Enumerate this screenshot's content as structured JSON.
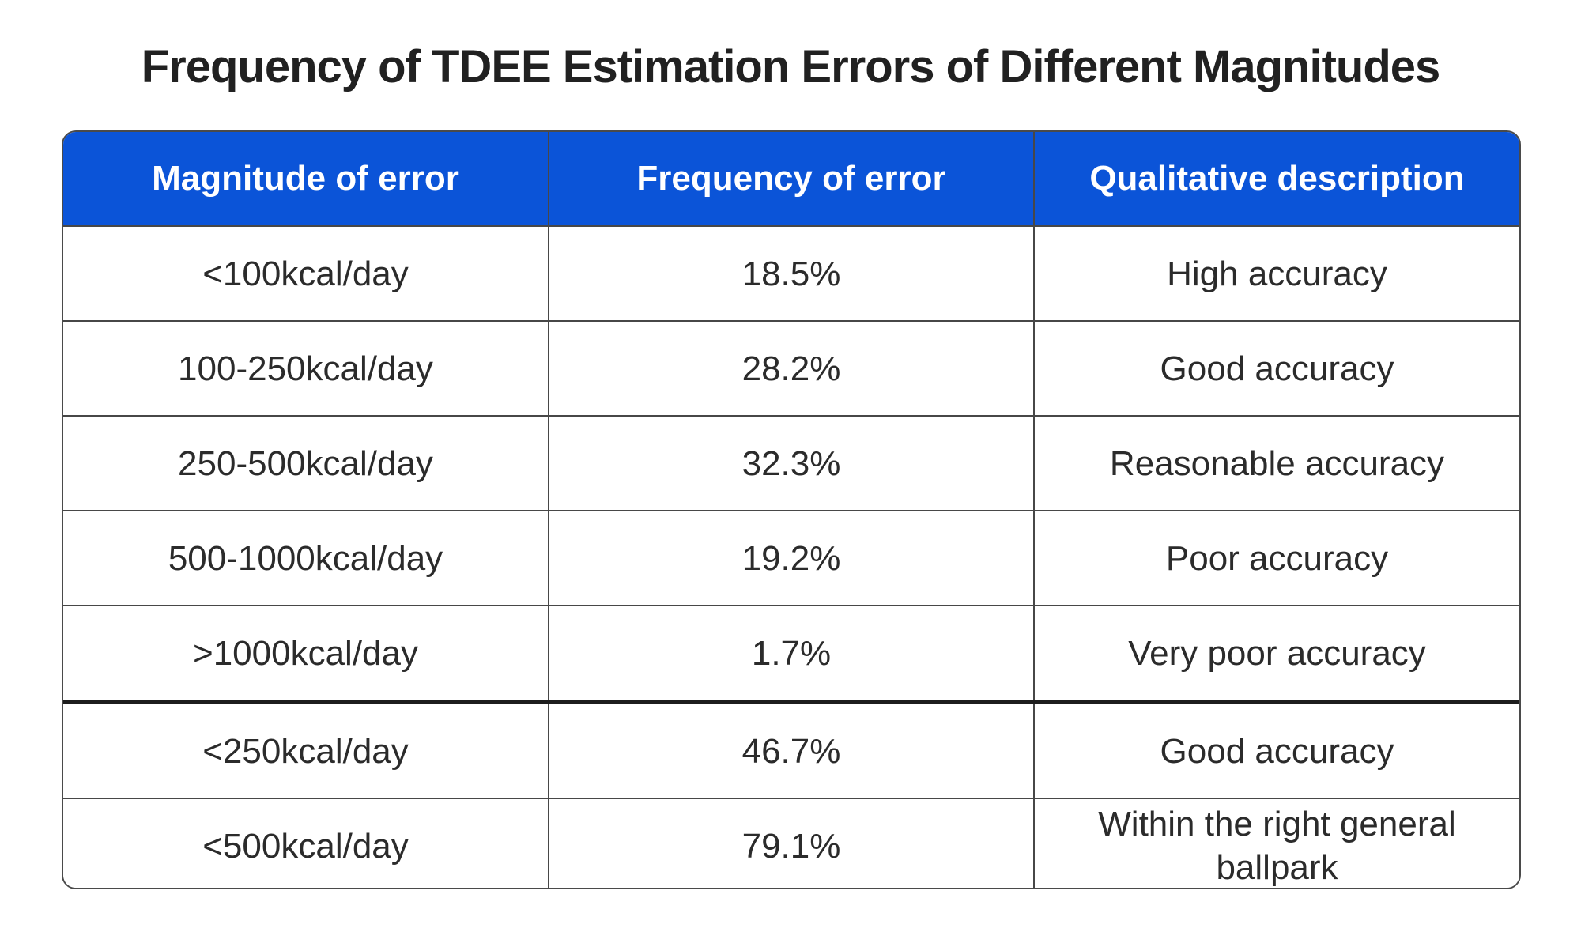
{
  "page": {
    "background_color": "#ffffff",
    "title": "Frequency of TDEE Estimation Errors of Different Magnitudes"
  },
  "table_style": {
    "header_background_color": "#0b54d8",
    "header_text_color": "#ffffff",
    "body_text_color": "#2b2b2b",
    "grid_border_color": "#474747",
    "outer_border_color": "#4a4a4a",
    "thick_divider_color": "#1d1d1d"
  },
  "chart_data": {
    "type": "table",
    "title": "Frequency of TDEE Estimation Errors of Different Magnitudes",
    "columns": [
      "Magnitude of error",
      "Frequency of error",
      "Qualitative description"
    ],
    "rows": [
      [
        "<100kcal/day",
        "18.5%",
        "High accuracy"
      ],
      [
        "100-250kcal/day",
        "28.2%",
        "Good accuracy"
      ],
      [
        "250-500kcal/day",
        "32.3%",
        "Reasonable accuracy"
      ],
      [
        "500-1000kcal/day",
        "19.2%",
        "Poor accuracy"
      ],
      [
        ">1000kcal/day",
        "1.7%",
        "Very poor accuracy"
      ],
      [
        "<250kcal/day",
        "46.7%",
        "Good accuracy"
      ],
      [
        "<500kcal/day",
        "79.1%",
        "Within the right general ballpark"
      ]
    ],
    "frequency_values_percent": [
      18.5,
      28.2,
      32.3,
      19.2,
      1.7,
      46.7,
      79.1
    ],
    "notes": {
      "thick_divider_after_row_index": 4,
      "last_two_rows_are_cumulative": true,
      "layout": "3 equal columns, header row blue, all cells center-aligned, rounded outer corners"
    }
  }
}
